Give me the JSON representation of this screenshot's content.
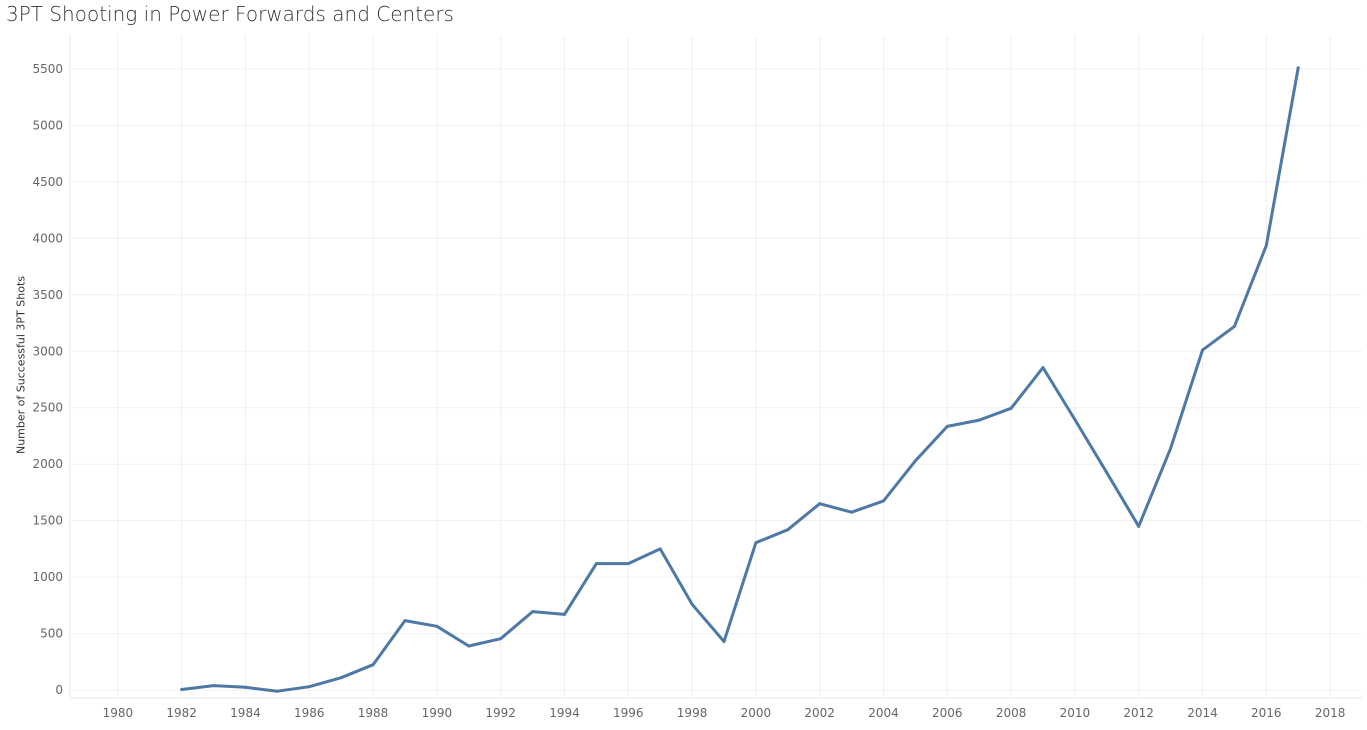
{
  "chart_data": {
    "type": "line",
    "title": "3PT Shooting in Power Forwards and Centers",
    "xlabel": "",
    "ylabel": "Number of Successful 3PT Shots",
    "xlim": [
      1978.5,
      2019
    ],
    "ylim": [
      -70,
      5800
    ],
    "x_ticks": [
      1980,
      1982,
      1984,
      1986,
      1988,
      1990,
      1992,
      1994,
      1996,
      1998,
      2000,
      2002,
      2004,
      2006,
      2008,
      2010,
      2012,
      2014,
      2016,
      2018
    ],
    "y_ticks": [
      0,
      500,
      1000,
      1500,
      2000,
      2500,
      3000,
      3500,
      4000,
      4500,
      5000,
      5500
    ],
    "grid": true,
    "line_color": "#4e79a7",
    "series": [
      {
        "x": [
          1982,
          1983,
          1984,
          1985,
          1986,
          1987,
          1988,
          1989,
          1990,
          1991,
          1992,
          1993,
          1994,
          1995,
          1996,
          1997,
          1998,
          1999,
          2000,
          2001,
          2002,
          2003,
          2004,
          2005,
          2006,
          2007,
          2008,
          2009,
          2010,
          2011,
          2012,
          2013,
          2014,
          2015,
          2016,
          2017
        ],
        "values": [
          5,
          40,
          25,
          -10,
          30,
          110,
          225,
          615,
          565,
          390,
          455,
          695,
          670,
          1120,
          1120,
          1250,
          760,
          430,
          1305,
          1420,
          1650,
          1575,
          1675,
          2030,
          2335,
          2390,
          2495,
          2855,
          2395,
          1925,
          1450,
          2140,
          3010,
          3220,
          3935,
          5510
        ]
      }
    ]
  }
}
